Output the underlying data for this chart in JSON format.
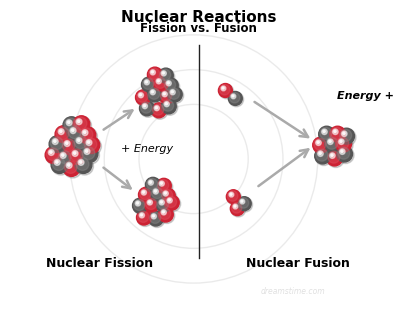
{
  "title": "Nuclear Reactions",
  "subtitle": "Fission vs. Fusion",
  "label_fission": "Nuclear Fission",
  "label_fusion": "Nuclear Fusion",
  "fission_energy_label": "+ Energy",
  "fusion_energy_label": "Energy +",
  "bg_color": "#ffffff",
  "title_fontsize": 11,
  "subtitle_fontsize": 8.5,
  "label_fontsize": 9,
  "red_color": "#cc2233",
  "red_light": "#e05060",
  "dark_color": "#555555",
  "dark_light": "#888888",
  "arrow_color": "#aaaaaa",
  "divider_color": "#222222",
  "watermark_color": "#dddddd",
  "arc_color": "#dddddd"
}
